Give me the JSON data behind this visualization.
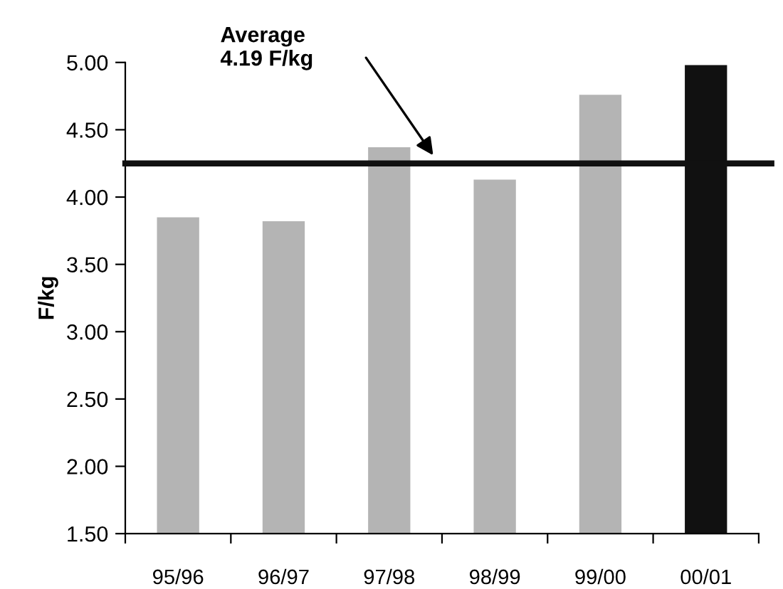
{
  "chart_data": {
    "type": "bar",
    "ylabel": "F/kg",
    "categories": [
      "95/96",
      "96/97",
      "97/98",
      "98/99",
      "99/00",
      "00/01"
    ],
    "values": [
      3.85,
      3.82,
      4.37,
      4.13,
      4.76,
      4.98
    ],
    "colors": [
      "#b4b4b4",
      "#b4b4b4",
      "#b4b4b4",
      "#b4b4b4",
      "#b4b4b4",
      "#111111"
    ],
    "ylim": [
      1.5,
      5.0
    ],
    "yticks": [
      {
        "value": 1.5,
        "label": "1.50"
      },
      {
        "value": 2.0,
        "label": "2.00"
      },
      {
        "value": 2.5,
        "label": "2.50"
      },
      {
        "value": 3.0,
        "label": "3.00"
      },
      {
        "value": 3.5,
        "label": "3.50"
      },
      {
        "value": 4.0,
        "label": "4.00"
      },
      {
        "value": 4.5,
        "label": "4.50"
      },
      {
        "value": 5.0,
        "label": "5.00"
      }
    ],
    "ref_lines": [
      {
        "axis": "y",
        "value": 4.25,
        "color": "#111111"
      }
    ],
    "annotations": [
      "Average\n4.19 F/kg"
    ],
    "grid": false
  }
}
